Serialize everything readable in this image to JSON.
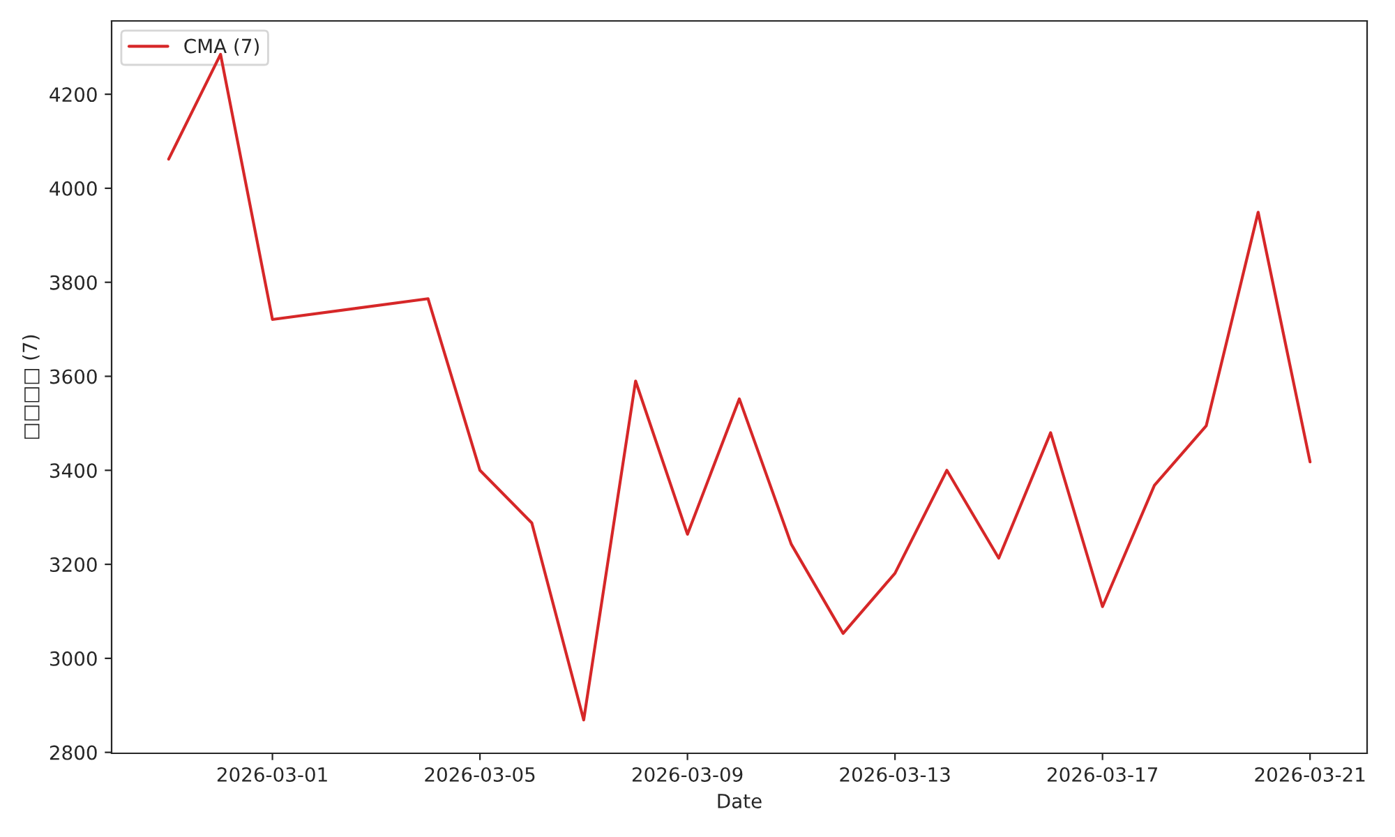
{
  "chart_data": {
    "type": "line",
    "xlabel": "Date",
    "ylabel": "□□□□ (7)",
    "x": [
      "2026-02-27",
      "2026-02-28",
      "2026-03-01",
      "2026-03-04",
      "2026-03-05",
      "2026-03-06",
      "2026-03-07",
      "2026-03-08",
      "2026-03-09",
      "2026-03-10",
      "2026-03-11",
      "2026-03-12",
      "2026-03-13",
      "2026-03-14",
      "2026-03-15",
      "2026-03-16",
      "2026-03-17",
      "2026-03-18",
      "2026-03-19",
      "2026-03-20",
      "2026-03-21"
    ],
    "series": [
      {
        "name": "CMA (7)",
        "color": "#d62728",
        "values": [
          4062,
          4285,
          3721,
          3765,
          3400,
          3288,
          2869,
          3590,
          3264,
          3552,
          3243,
          3053,
          3181,
          3400,
          3213,
          3480,
          3110,
          3368,
          3495,
          3949,
          3418
        ]
      }
    ],
    "xlim": [
      "2026-02-25T21:36",
      "2026-03-22T02:24"
    ],
    "xticks": [
      "2026-03-01",
      "2026-03-05",
      "2026-03-09",
      "2026-03-13",
      "2026-03-17",
      "2026-03-21"
    ],
    "ylim": [
      2798,
      4356
    ],
    "yticks": [
      2800,
      3000,
      3200,
      3400,
      3600,
      3800,
      4000,
      4200
    ],
    "grid": false,
    "legend": "top left",
    "line_style": "solid",
    "marker": "none"
  }
}
